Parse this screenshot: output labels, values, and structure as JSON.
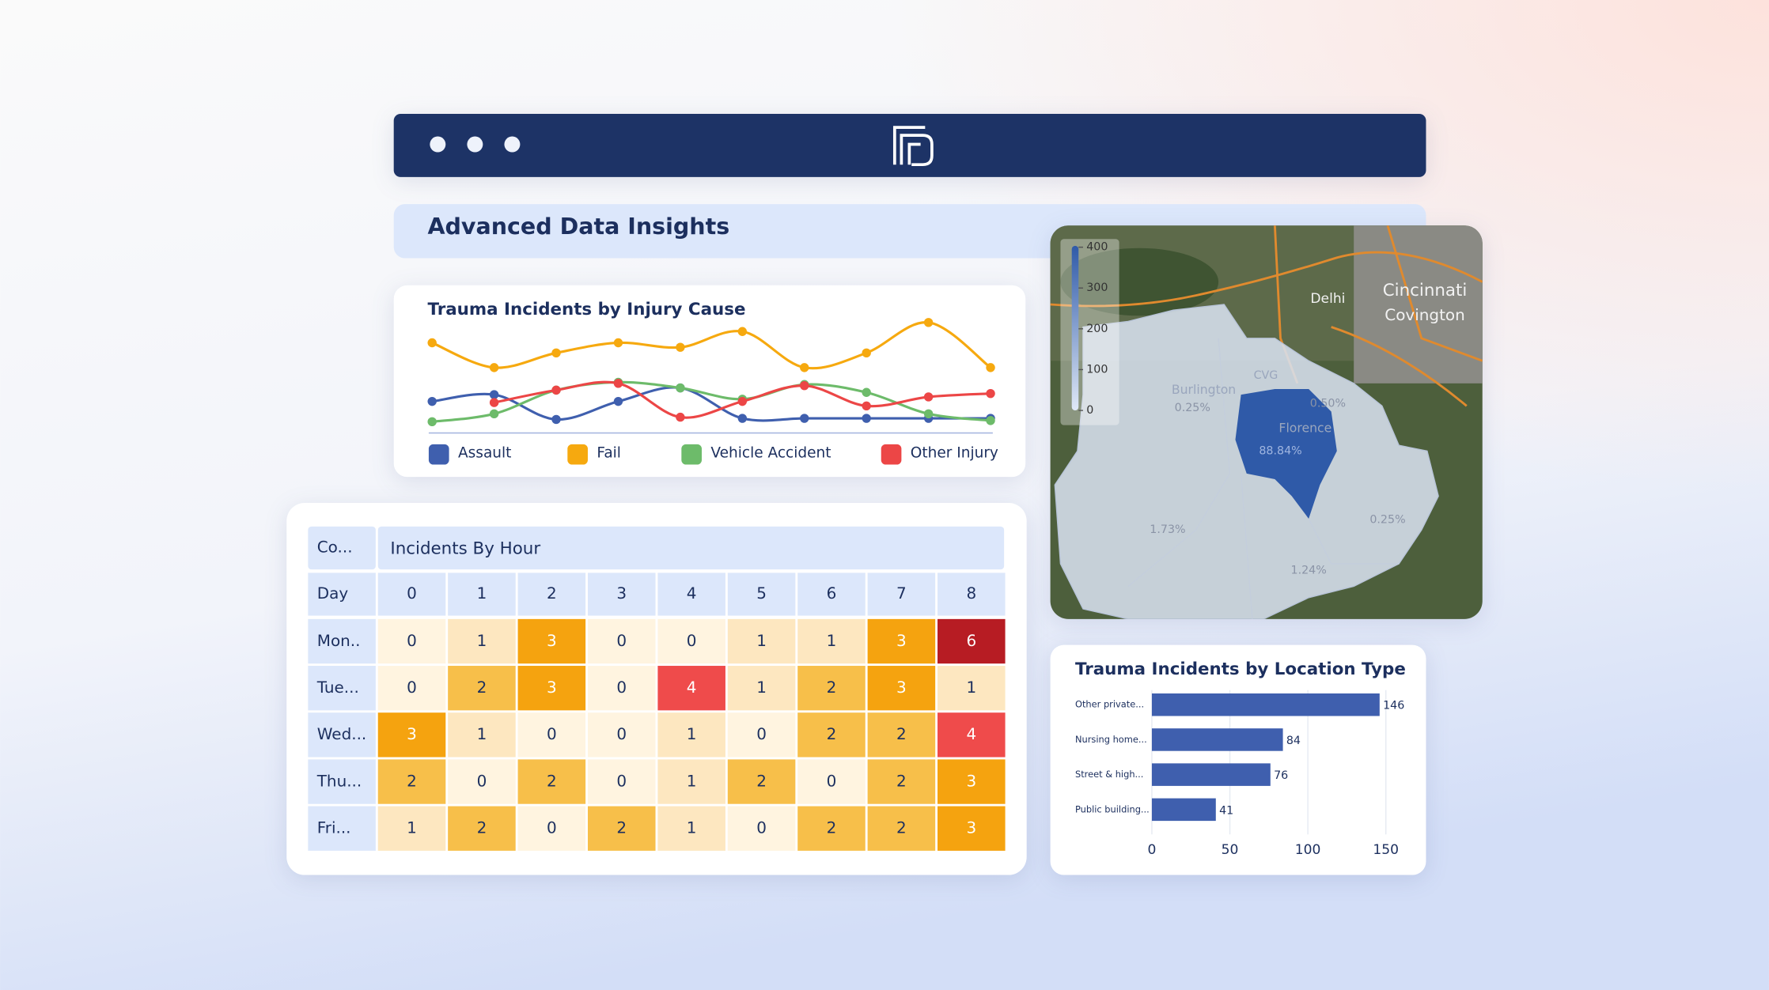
{
  "header": {
    "title": "Advanced Data Insights"
  },
  "chart_data": [
    {
      "type": "line",
      "title": "Trauma Incidents by Injury Cause",
      "ylim": [
        0,
        10
      ],
      "legend": "bottom",
      "series": [
        {
          "name": "Assault",
          "color": "#3f5fae",
          "values": [
            2.8,
            3.4,
            1.2,
            2.8,
            4.0,
            1.3,
            1.3,
            1.3,
            1.3,
            1.3
          ]
        },
        {
          "name": "Fail",
          "color": "#f6a90f",
          "values": [
            8.0,
            5.8,
            7.1,
            8.0,
            7.6,
            9.0,
            5.8,
            7.1,
            9.8,
            5.8
          ]
        },
        {
          "name": "Vehicle Accident",
          "color": "#6dbb6a",
          "values": [
            1.0,
            1.7,
            3.8,
            4.5,
            4.0,
            3.0,
            4.3,
            3.6,
            1.7,
            1.1
          ]
        },
        {
          "name": "Other Injury",
          "color": "#ec4646",
          "values": [
            null,
            2.7,
            3.8,
            4.4,
            1.4,
            2.8,
            4.2,
            2.4,
            3.2,
            3.5
          ]
        }
      ]
    },
    {
      "type": "bar",
      "orientation": "horizontal",
      "title": "Trauma Incidents by Location Type",
      "color": "#3f5fae",
      "categories": [
        "Other private...",
        "Nursing home...",
        "Street & high...",
        "Public building..."
      ],
      "values": [
        146,
        84,
        76,
        41
      ],
      "xlim": [
        0,
        162
      ],
      "xticks": [
        0,
        50,
        100,
        150
      ],
      "grid": true
    },
    {
      "type": "heatmap",
      "title": "Incidents By Hour",
      "corner": "Co...",
      "row_header": "Day",
      "categories": [
        0,
        1,
        2,
        3,
        4,
        5,
        6,
        7,
        8
      ],
      "rows": [
        "Mon..",
        "Tue...",
        "Wed...",
        "Thu...",
        "Fri..."
      ],
      "values": [
        [
          0,
          1,
          3,
          0,
          0,
          1,
          1,
          3,
          6
        ],
        [
          0,
          2,
          3,
          0,
          4,
          1,
          2,
          3,
          1
        ],
        [
          3,
          1,
          0,
          0,
          1,
          0,
          2,
          2,
          4
        ],
        [
          2,
          0,
          2,
          0,
          1,
          2,
          0,
          2,
          3
        ],
        [
          1,
          2,
          0,
          2,
          1,
          0,
          2,
          2,
          3
        ]
      ],
      "colors": {
        "0": "#fff4e0",
        "1": "#fde7c0",
        "2": "#f7bf4a",
        "3": "#f5a30f",
        "4": "#ef4b4b",
        "6": "#b71c23"
      }
    }
  ],
  "map": {
    "colorbar_lim": [
      0,
      420
    ],
    "legend_ticks": [
      400,
      300,
      200,
      100,
      0
    ],
    "places": [
      "Delhi",
      "Cincinnati",
      "Covington",
      "Burlington",
      "Florence",
      "CVG"
    ],
    "region_labels": [
      "0.25%",
      "0.50%",
      "88.84%",
      "1.73%",
      "1.24%",
      "0.25%"
    ]
  }
}
